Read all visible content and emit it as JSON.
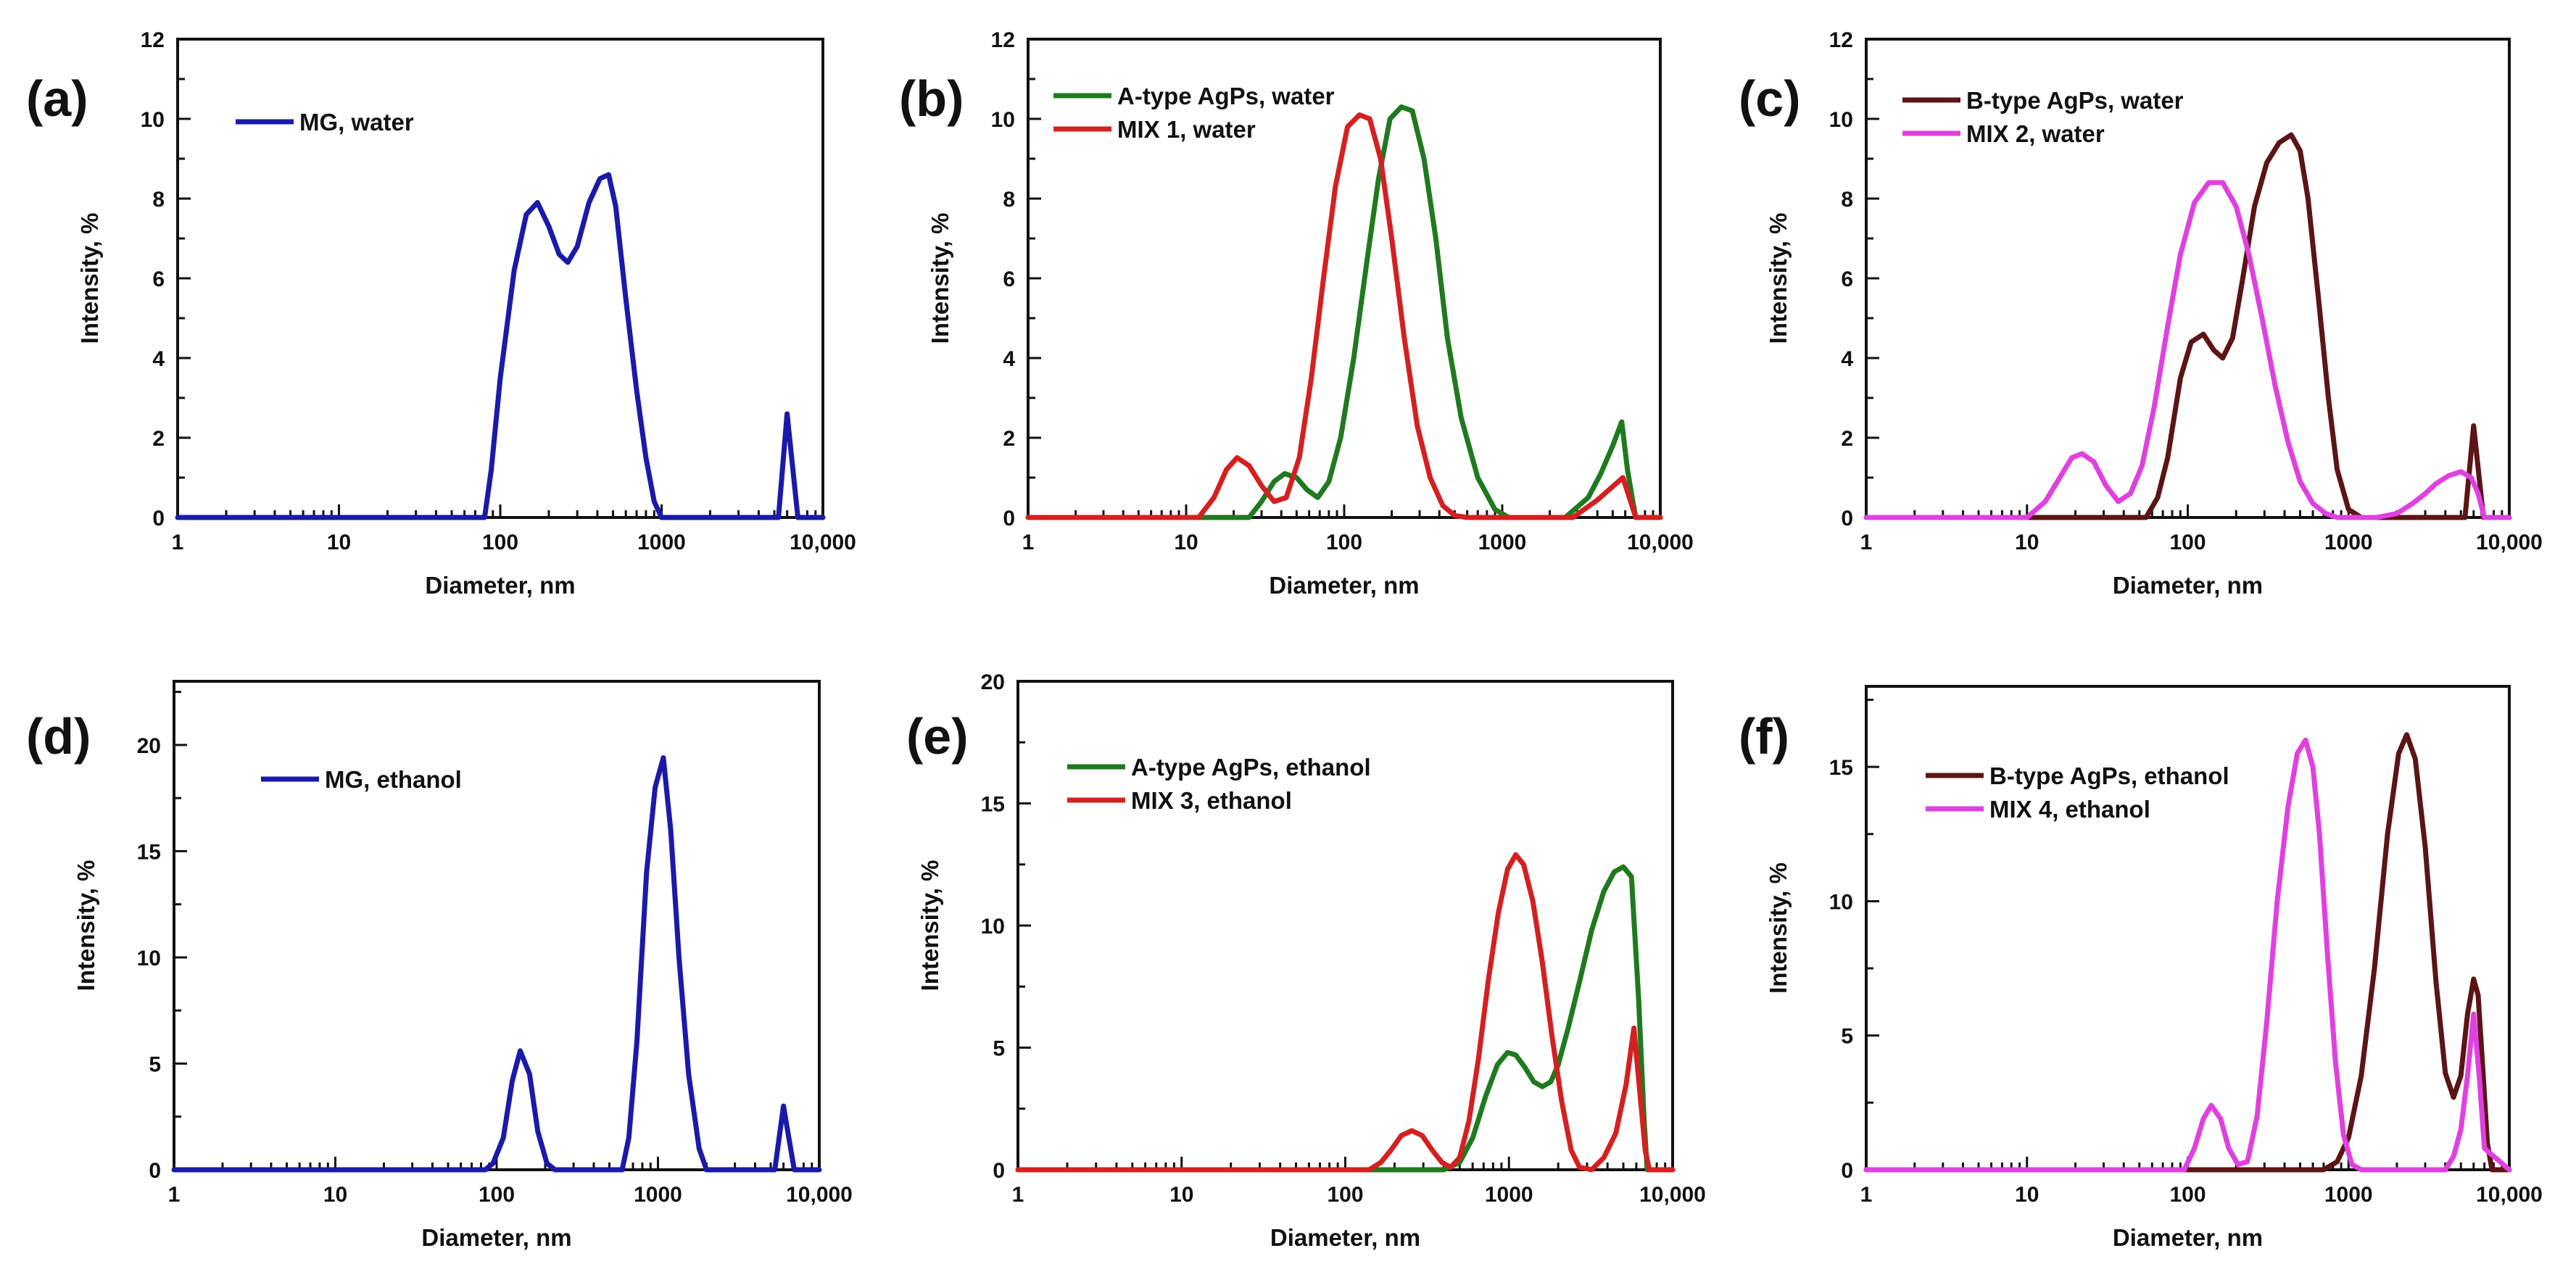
{
  "chart_data": [
    {
      "type": "line",
      "panel_label": "(a)",
      "xlabel": "Diameter, nm",
      "ylabel": "Intensity, %",
      "x_scale": "log",
      "xlim": [
        1,
        10000
      ],
      "ylim": [
        0,
        12
      ],
      "x_tick_labels": [
        "1",
        "10",
        "100",
        "1000",
        "10,000"
      ],
      "y_ticks": [
        0,
        2,
        4,
        6,
        8,
        10,
        12
      ],
      "legend_position": "top-left",
      "series": [
        {
          "name": "MG, water",
          "color": "#1a1aaa",
          "x": [
            1,
            80,
            88,
            100,
            122,
            145,
            170,
            200,
            232,
            262,
            300,
            355,
            415,
            470,
            520,
            600,
            700,
            800,
            900,
            1000,
            1100,
            10000
          ],
          "y": [
            0,
            0,
            1.2,
            3.5,
            6.2,
            7.6,
            7.9,
            7.3,
            6.6,
            6.4,
            6.8,
            7.9,
            8.5,
            8.6,
            7.8,
            5.5,
            3.2,
            1.5,
            0.4,
            0,
            0,
            0
          ],
          "spike": {
            "x": 6000,
            "height": 2.6,
            "from": 5300,
            "to": 7000
          }
        }
      ]
    },
    {
      "type": "line",
      "panel_label": "(b)",
      "xlabel": "Diameter, nm",
      "ylabel": "Intensity, %",
      "x_scale": "log",
      "xlim": [
        1,
        10000
      ],
      "ylim": [
        0,
        12
      ],
      "x_tick_labels": [
        "1",
        "10",
        "100",
        "1000",
        "10,000"
      ],
      "y_ticks": [
        0,
        2,
        4,
        6,
        8,
        10,
        12
      ],
      "legend_position": "top-left",
      "series": [
        {
          "name": "A-type AgPs, water",
          "color": "#1f7a1f",
          "x": [
            1,
            25,
            30,
            36,
            42,
            50,
            58,
            68,
            80,
            95,
            115,
            140,
            165,
            195,
            230,
            270,
            320,
            380,
            450,
            550,
            700,
            900,
            1100,
            1500,
            2500,
            3500,
            4200,
            5000,
            5700,
            6200,
            6700,
            7000,
            10000
          ],
          "y": [
            0,
            0,
            0.4,
            0.9,
            1.1,
            1.0,
            0.7,
            0.5,
            0.9,
            2.0,
            4.0,
            6.5,
            8.5,
            10.0,
            10.3,
            10.2,
            9.0,
            7.0,
            4.5,
            2.5,
            1.0,
            0.2,
            0,
            0,
            0,
            0.5,
            1.1,
            1.8,
            2.4,
            1.2,
            0.4,
            0,
            0
          ]
        },
        {
          "name": "MIX 1, water",
          "color": "#d42020",
          "x": [
            1,
            12,
            15,
            18,
            21,
            25,
            30,
            36,
            43,
            52,
            62,
            74,
            88,
            105,
            125,
            145,
            170,
            200,
            240,
            290,
            350,
            420,
            500,
            600,
            10000
          ],
          "y": [
            0,
            0,
            0.5,
            1.2,
            1.5,
            1.3,
            0.8,
            0.4,
            0.5,
            1.5,
            3.5,
            6.0,
            8.3,
            9.8,
            10.1,
            10.0,
            9.0,
            7.0,
            4.5,
            2.3,
            1.0,
            0.3,
            0.05,
            0,
            0
          ],
          "bump": {
            "start": 2800,
            "peak": 5800,
            "end": 7000,
            "height": 1.0
          }
        }
      ]
    },
    {
      "type": "line",
      "panel_label": "(c)",
      "xlabel": "Diameter, nm",
      "ylabel": "Intensity, %",
      "x_scale": "log",
      "xlim": [
        1,
        10000
      ],
      "ylim": [
        0,
        12
      ],
      "x_tick_labels": [
        "1",
        "10",
        "100",
        "1000",
        "10,000"
      ],
      "y_ticks": [
        0,
        2,
        4,
        6,
        8,
        10,
        12
      ],
      "legend_position": "top-left",
      "series": [
        {
          "name": "B-type AgPs, water",
          "color": "#5c1414",
          "x": [
            1,
            55,
            65,
            75,
            90,
            105,
            125,
            145,
            165,
            190,
            220,
            260,
            310,
            370,
            440,
            500,
            560,
            650,
            750,
            850,
            1000,
            1200,
            10000
          ],
          "y": [
            0,
            0,
            0.5,
            1.5,
            3.5,
            4.4,
            4.6,
            4.2,
            4.0,
            4.5,
            6.0,
            7.8,
            8.9,
            9.4,
            9.6,
            9.2,
            8.0,
            5.5,
            3.0,
            1.2,
            0.2,
            0,
            0
          ],
          "spike": {
            "x": 6000,
            "height": 2.3,
            "from": 5300,
            "to": 6900
          }
        },
        {
          "name": "MIX 2, water",
          "color": "#e040e0",
          "x": [
            1,
            10,
            13,
            16,
            19,
            22,
            26,
            31,
            37,
            44,
            52,
            62,
            75,
            90,
            110,
            135,
            165,
            200,
            240,
            290,
            350,
            420,
            500,
            600,
            720,
            850,
            1000,
            1200,
            1500,
            2000,
            2500,
            3000,
            3500,
            4200,
            5000,
            5800,
            6400,
            7000,
            10000
          ],
          "y": [
            0,
            0,
            0.4,
            1.0,
            1.5,
            1.6,
            1.4,
            0.8,
            0.4,
            0.6,
            1.3,
            2.8,
            4.8,
            6.6,
            7.9,
            8.4,
            8.4,
            7.8,
            6.6,
            5.0,
            3.3,
            1.9,
            0.9,
            0.35,
            0.1,
            0,
            0,
            0,
            0,
            0.1,
            0.35,
            0.6,
            0.85,
            1.05,
            1.15,
            1.0,
            0.6,
            0,
            0
          ]
        }
      ]
    },
    {
      "type": "line",
      "panel_label": "(d)",
      "xlabel": "Diameter, nm",
      "ylabel": "Intensity, %",
      "x_scale": "log",
      "xlim": [
        1,
        10000
      ],
      "ylim": [
        0,
        23
      ],
      "x_tick_labels": [
        "1",
        "10",
        "100",
        "1000",
        "10,000"
      ],
      "y_ticks": [
        0,
        5,
        10,
        15,
        20
      ],
      "legend_position": "top-left",
      "series": [
        {
          "name": "MG, ethanol",
          "color": "#1a1aaa",
          "x": [
            1,
            85,
            95,
            110,
            125,
            140,
            160,
            180,
            205,
            230,
            600,
            660,
            740,
            850,
            960,
            1080,
            1200,
            1350,
            1550,
            1800,
            2000,
            10000
          ],
          "y": [
            0,
            0,
            0.3,
            1.5,
            4.2,
            5.6,
            4.5,
            1.8,
            0.3,
            0,
            0,
            1.5,
            6.0,
            14.0,
            18.0,
            19.4,
            16.0,
            10.0,
            4.5,
            1.0,
            0,
            0
          ],
          "spike": {
            "x": 6000,
            "height": 3.0,
            "from": 5300,
            "to": 7000
          }
        }
      ]
    },
    {
      "type": "line",
      "panel_label": "(e)",
      "xlabel": "Diameter, nm",
      "ylabel": "Intensity, %",
      "x_scale": "log",
      "xlim": [
        1,
        10000
      ],
      "ylim": [
        0,
        20
      ],
      "x_tick_labels": [
        "1",
        "10",
        "100",
        "1000",
        "10,000"
      ],
      "y_ticks": [
        0,
        5,
        10,
        15,
        20
      ],
      "legend_position": "top-left",
      "series": [
        {
          "name": "A-type AgPs, ethanol",
          "color": "#1f7a1f",
          "x": [
            1,
            400,
            500,
            600,
            720,
            850,
            980,
            1100,
            1250,
            1420,
            1600,
            1800,
            2000,
            2300,
            2700,
            3200,
            3800,
            4400,
            5000,
            5600,
            6200,
            6700,
            7000,
            10000
          ],
          "y": [
            0,
            0,
            0.3,
            1.3,
            3.0,
            4.3,
            4.8,
            4.7,
            4.2,
            3.6,
            3.4,
            3.6,
            4.3,
            5.8,
            7.7,
            9.8,
            11.4,
            12.2,
            12.4,
            12.0,
            7.0,
            2.0,
            0,
            0
          ]
        },
        {
          "name": "MIX 3, ethanol",
          "color": "#d42020",
          "x": [
            1,
            140,
            165,
            190,
            220,
            255,
            295,
            340,
            390,
            440,
            500,
            570,
            650,
            750,
            860,
            980,
            1100,
            1230,
            1400,
            1600,
            1830,
            2100,
            2400,
            2700,
            3200,
            3800,
            4500,
            5200,
            5800,
            6300,
            6800,
            7200,
            10000
          ],
          "y": [
            0,
            0,
            0.3,
            0.8,
            1.4,
            1.6,
            1.4,
            0.8,
            0.3,
            0.1,
            0.5,
            2.0,
            4.5,
            7.8,
            10.5,
            12.3,
            12.9,
            12.5,
            11.0,
            8.5,
            5.5,
            2.8,
            0.8,
            0.1,
            0,
            0.5,
            1.5,
            3.5,
            5.8,
            3.2,
            0.8,
            0,
            0
          ]
        }
      ]
    },
    {
      "type": "line",
      "panel_label": "(f)",
      "xlabel": "Diameter, nm",
      "ylabel": "Intensity, %",
      "x_scale": "log",
      "xlim": [
        1,
        10000
      ],
      "ylim": [
        0,
        18
      ],
      "x_tick_labels": [
        "1",
        "10",
        "100",
        "1000",
        "10,000"
      ],
      "y_ticks": [
        0,
        5,
        10,
        15
      ],
      "legend_position": "top-left",
      "series": [
        {
          "name": "B-type AgPs, ethanol",
          "color": "#5c1414",
          "x": [
            1,
            700,
            850,
            1000,
            1200,
            1450,
            1750,
            2050,
            2300,
            2600,
            3000,
            3500,
            4000,
            4500,
            5000,
            5500,
            6000,
            6400,
            6800,
            7300,
            7800,
            10000
          ],
          "y": [
            0,
            0,
            0.3,
            1.2,
            3.5,
            7.5,
            12.5,
            15.5,
            16.2,
            15.3,
            12.0,
            7.0,
            3.6,
            2.7,
            3.5,
            5.8,
            7.1,
            6.5,
            4.0,
            1.0,
            0,
            0
          ]
        },
        {
          "name": "MIX 4, ethanol",
          "color": "#e040e0",
          "x": [
            1,
            95,
            110,
            125,
            140,
            160,
            180,
            205,
            235,
            270,
            310,
            360,
            420,
            480,
            540,
            600,
            660,
            740,
            830,
            930,
            1050,
            1200,
            4000,
            4500,
            5000,
            5500,
            6000,
            6500,
            7000,
            10000
          ],
          "y": [
            0,
            0,
            0.8,
            1.9,
            2.4,
            1.9,
            0.8,
            0.2,
            0.3,
            2.0,
            5.5,
            10.0,
            13.5,
            15.5,
            16.0,
            15.0,
            12.5,
            8.0,
            4.0,
            1.3,
            0.2,
            0,
            0,
            0.5,
            1.5,
            3.5,
            5.8,
            3.5,
            0.8,
            0
          ]
        }
      ]
    }
  ]
}
